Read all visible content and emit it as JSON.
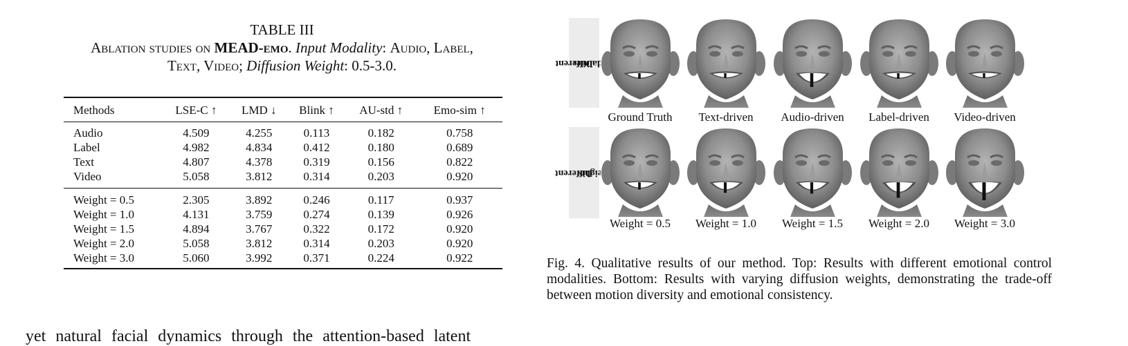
{
  "table": {
    "number": "TABLE III",
    "caption_line1": "Ablation studies on",
    "caption_dataset": "MEAD-emo",
    "caption_modality_label": "Input Modality",
    "caption_modality_values": "Audio, Label,",
    "caption_line2_values": "Text, Video;",
    "caption_weight_label": "Diffusion Weight",
    "caption_weight_values": "0.5-3.0.",
    "headers": [
      "Methods",
      "LSE-C ↑",
      "LMD ↓",
      "Blink ↑",
      "AU-std ↑",
      "Emo-sim ↑"
    ],
    "group1": [
      [
        "Audio",
        "4.509",
        "4.255",
        "0.113",
        "0.182",
        "0.758"
      ],
      [
        "Label",
        "4.982",
        "4.834",
        "0.412",
        "0.180",
        "0.689"
      ],
      [
        "Text",
        "4.807",
        "4.378",
        "0.319",
        "0.156",
        "0.822"
      ],
      [
        "Video",
        "5.058",
        "3.812",
        "0.314",
        "0.203",
        "0.920"
      ]
    ],
    "group2": [
      [
        "Weight = 0.5",
        "2.305",
        "3.892",
        "0.246",
        "0.117",
        "0.937"
      ],
      [
        "Weight = 1.0",
        "4.131",
        "3.759",
        "0.274",
        "0.139",
        "0.926"
      ],
      [
        "Weight = 1.5",
        "4.894",
        "3.767",
        "0.322",
        "0.172",
        "0.920"
      ],
      [
        "Weight = 2.0",
        "5.058",
        "3.812",
        "0.314",
        "0.203",
        "0.920"
      ],
      [
        "Weight = 3.0",
        "5.060",
        "3.992",
        "0.371",
        "0.224",
        "0.922"
      ]
    ]
  },
  "figure": {
    "row1_label_line1": "Different",
    "row1_label_line2": "Modalities",
    "row2_label_line1": "Different",
    "row2_label_line2": "Weights",
    "row1_captions": [
      "Ground Truth",
      "Text-driven",
      "Audio-driven",
      "Label-driven",
      "Video-driven"
    ],
    "row2_captions": [
      "Weight = 0.5",
      "Weight = 1.0",
      "Weight = 1.5",
      "Weight = 2.0",
      "Weight = 3.0"
    ],
    "row1_mouth_open": [
      0.25,
      0.2,
      0.75,
      0.25,
      0.2
    ],
    "row2_mouth_open": [
      0.35,
      0.55,
      0.6,
      0.85,
      1.0
    ],
    "caption": "Fig. 4.  Qualitative results of our method. Top: Results with different emotional control modalities. Bottom: Results with varying diffusion weights, demonstrating the trade-off between motion diversity and emotional consistency."
  },
  "body_text": "yet natural facial dynamics through the attention-based latent"
}
